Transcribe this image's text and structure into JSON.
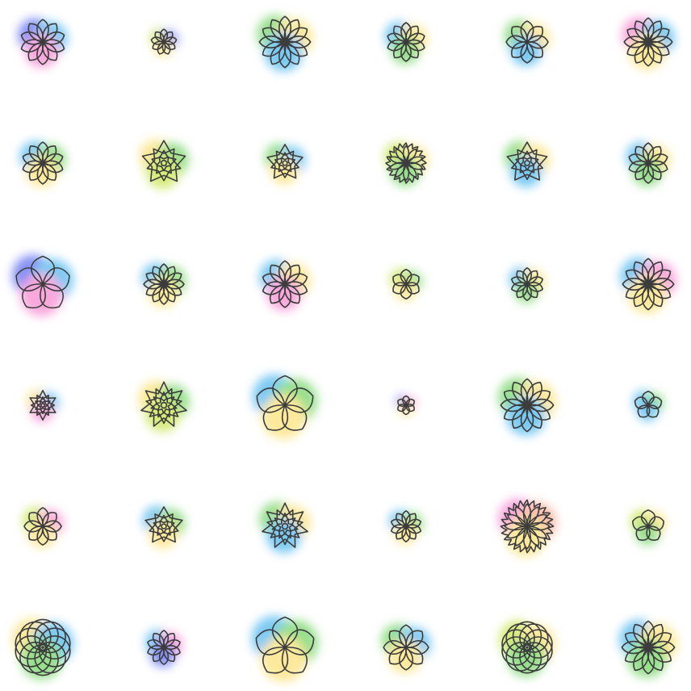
{
  "palette": {
    "stroke": "#3c3c3c",
    "blue": "#4fb8ef",
    "indigo": "#5b6cf0",
    "pink": "#f68bd0",
    "yellow": "#fbe27a",
    "green": "#74d467",
    "lime": "#c6e44d",
    "peach": "#f8a68f",
    "background": "#ffffff"
  },
  "grid": {
    "rows": 6,
    "columns": 6
  },
  "flowers": [
    {
      "shape": "rose",
      "petals": 10,
      "size": 0.58,
      "colors": [
        "indigo",
        "blue",
        "pink"
      ]
    },
    {
      "shape": "rose",
      "petals": 9,
      "size": 0.33,
      "colors": [
        "lime",
        "indigo",
        "yellow"
      ]
    },
    {
      "shape": "rose",
      "petals": 12,
      "size": 0.66,
      "colors": [
        "green",
        "yellow",
        "blue"
      ]
    },
    {
      "shape": "rose",
      "petals": 10,
      "size": 0.5,
      "colors": [
        "blue",
        "yellow",
        "green"
      ]
    },
    {
      "shape": "rose",
      "petals": 8,
      "size": 0.54,
      "colors": [
        "green",
        "yellow",
        "blue"
      ]
    },
    {
      "shape": "rose",
      "petals": 12,
      "size": 0.62,
      "colors": [
        "pink",
        "blue",
        "yellow"
      ]
    },
    {
      "shape": "rose",
      "petals": 10,
      "size": 0.54,
      "colors": [
        "blue",
        "green",
        "yellow"
      ]
    },
    {
      "shape": "star",
      "petals": 5,
      "layers": 4,
      "size": 0.58,
      "colors": [
        "yellow",
        "green",
        "lime"
      ]
    },
    {
      "shape": "star",
      "petals": 5,
      "layers": 4,
      "size": 0.48,
      "colors": [
        "green",
        "blue",
        "yellow"
      ]
    },
    {
      "shape": "zigzag",
      "petals": 10,
      "size": 0.52,
      "colors": [
        "lime",
        "yellow",
        "green"
      ]
    },
    {
      "shape": "star",
      "petals": 5,
      "layers": 4,
      "size": 0.54,
      "colors": [
        "green",
        "yellow",
        "blue"
      ]
    },
    {
      "shape": "rose",
      "petals": 10,
      "size": 0.52,
      "colors": [
        "blue",
        "yellow",
        "green"
      ]
    },
    {
      "shape": "rose",
      "petals": 5,
      "size": 0.72,
      "colors": [
        "indigo",
        "blue",
        "pink"
      ]
    },
    {
      "shape": "rose",
      "petals": 12,
      "size": 0.52,
      "colors": [
        "blue",
        "green",
        "yellow"
      ]
    },
    {
      "shape": "rose",
      "petals": 10,
      "size": 0.6,
      "colors": [
        "blue",
        "yellow",
        "pink"
      ]
    },
    {
      "shape": "rose",
      "petals": 6,
      "size": 0.38,
      "colors": [
        "lime",
        "green",
        "yellow"
      ]
    },
    {
      "shape": "rose",
      "petals": 10,
      "size": 0.42,
      "colors": [
        "blue",
        "yellow",
        "green"
      ]
    },
    {
      "shape": "rose",
      "petals": 12,
      "size": 0.66,
      "colors": [
        "blue",
        "pink",
        "yellow"
      ]
    },
    {
      "shape": "star",
      "petals": 6,
      "layers": 4,
      "size": 0.38,
      "colors": [
        "yellow",
        "blue",
        "pink"
      ]
    },
    {
      "shape": "star",
      "petals": 7,
      "layers": 4,
      "size": 0.6,
      "colors": [
        "yellow",
        "green",
        "lime"
      ]
    },
    {
      "shape": "rose",
      "petals": 5,
      "size": 0.76,
      "colors": [
        "blue",
        "green",
        "yellow"
      ]
    },
    {
      "shape": "rose",
      "petals": 6,
      "size": 0.24,
      "colors": [
        "indigo",
        "pink",
        "yellow"
      ]
    },
    {
      "shape": "rose",
      "petals": 12,
      "size": 0.68,
      "colors": [
        "green",
        "yellow",
        "blue"
      ]
    },
    {
      "shape": "rose",
      "petals": 5,
      "size": 0.36,
      "colors": [
        "blue",
        "green",
        "blue"
      ]
    },
    {
      "shape": "rose",
      "petals": 8,
      "size": 0.48,
      "colors": [
        "lime",
        "pink",
        "yellow"
      ]
    },
    {
      "shape": "star",
      "petals": 5,
      "layers": 4,
      "size": 0.5,
      "colors": [
        "blue",
        "green",
        "yellow"
      ]
    },
    {
      "shape": "star",
      "petals": 7,
      "layers": 4,
      "size": 0.6,
      "colors": [
        "green",
        "yellow",
        "blue"
      ]
    },
    {
      "shape": "rose",
      "petals": 10,
      "size": 0.4,
      "colors": [
        "blue",
        "green",
        "yellow"
      ]
    },
    {
      "shape": "zigzag",
      "petals": 12,
      "size": 0.68,
      "colors": [
        "pink",
        "peach",
        "yellow"
      ]
    },
    {
      "shape": "rose",
      "petals": 5,
      "size": 0.42,
      "colors": [
        "lime",
        "yellow",
        "green"
      ]
    },
    {
      "shape": "overlap",
      "petals": 10,
      "size": 0.72,
      "colors": [
        "yellow",
        "blue",
        "green"
      ]
    },
    {
      "shape": "rose",
      "petals": 10,
      "size": 0.44,
      "colors": [
        "blue",
        "pink",
        "indigo"
      ]
    },
    {
      "shape": "rose",
      "petals": 5,
      "size": 0.78,
      "colors": [
        "blue",
        "green",
        "yellow"
      ]
    },
    {
      "shape": "rose",
      "petals": 8,
      "size": 0.58,
      "colors": [
        "green",
        "blue",
        "yellow"
      ]
    },
    {
      "shape": "overlap",
      "petals": 10,
      "size": 0.66,
      "colors": [
        "lime",
        "yellow",
        "green"
      ]
    },
    {
      "shape": "rose",
      "petals": 12,
      "size": 0.68,
      "colors": [
        "blue",
        "yellow",
        "green"
      ]
    }
  ]
}
